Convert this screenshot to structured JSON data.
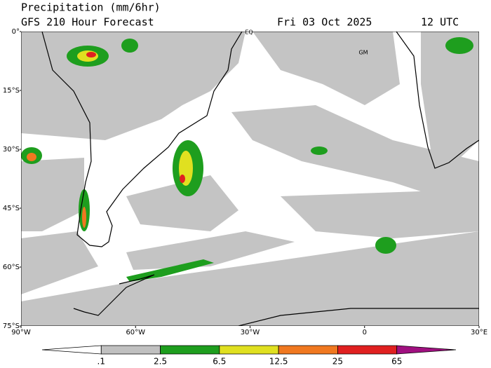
{
  "header": {
    "title": "Precipitation (mm/6hr)",
    "model": "GFS 210 Hour Forecast",
    "date": "Fri 03 Oct 2025",
    "time": "12 UTC"
  },
  "map": {
    "lat_labels": [
      "0°",
      "15°S",
      "30°S",
      "45°S",
      "60°S",
      "75°S"
    ],
    "lon_labels": [
      "90°W",
      "60°W",
      "30°W",
      "0",
      "30°E"
    ],
    "markers": [
      "EQ",
      "GM"
    ]
  },
  "legend": {
    "labels": [
      ".1",
      "2.5",
      "6.5",
      "12.5",
      "25",
      "65"
    ],
    "colors": [
      "#ffffff",
      "#c0c0c0",
      "#1e9e1e",
      "#e0e020",
      "#f07820",
      "#e02020",
      "#a01080"
    ]
  }
}
